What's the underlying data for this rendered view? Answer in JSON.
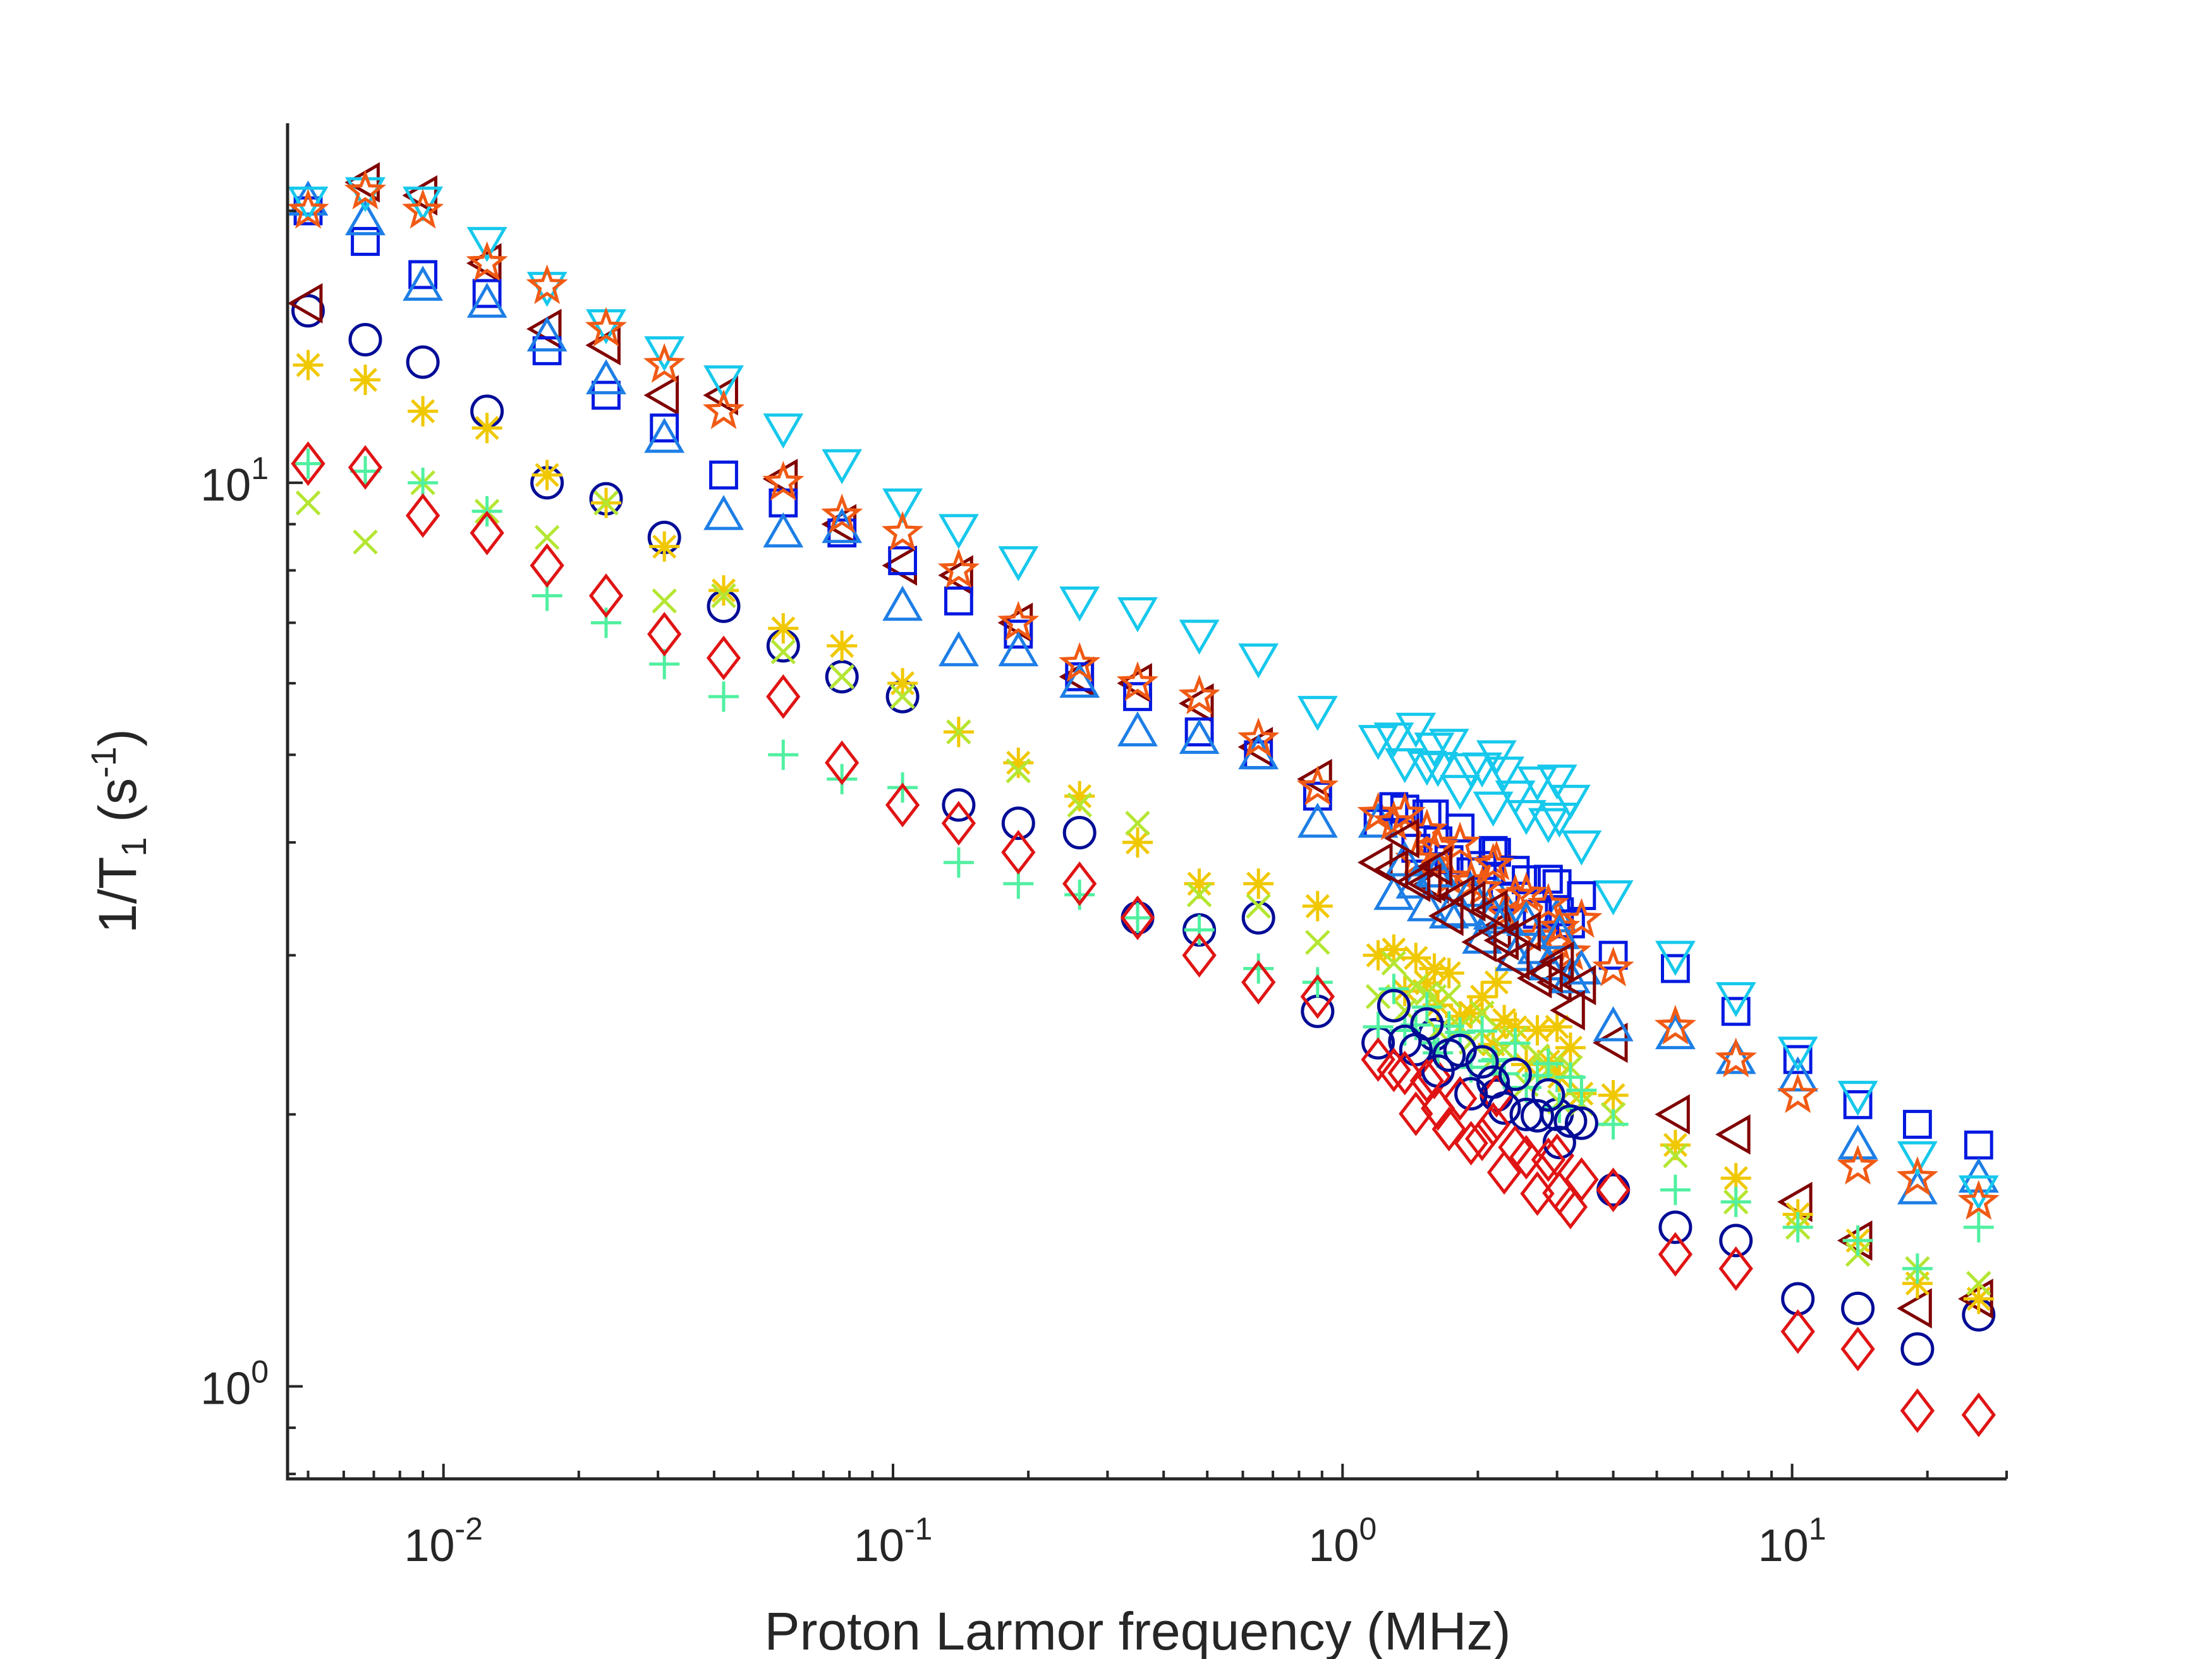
{
  "chart_data": {
    "type": "scatter",
    "title": "",
    "xlabel": "Proton Larmor frequency (MHz)",
    "ylabel": {
      "base": "1/T",
      "sub": "1",
      "mid": " (s",
      "sup": "-1",
      "end": ")"
    },
    "xscale": "log",
    "yscale": "log",
    "xlim": [
      0.0045,
      30
    ],
    "ylim": [
      0.79,
      25
    ],
    "x_ticks": [
      {
        "value": 0.01,
        "base": "10",
        "exp": "-2"
      },
      {
        "value": 0.1,
        "base": "10",
        "exp": "-1"
      },
      {
        "value": 1,
        "base": "10",
        "exp": "0"
      },
      {
        "value": 10,
        "base": "10",
        "exp": "1"
      }
    ],
    "y_ticks": [
      {
        "value": 1,
        "base": "10",
        "exp": "0"
      },
      {
        "value": 10,
        "base": "10",
        "exp": "1"
      }
    ],
    "grid": false,
    "legend": "none",
    "x": [
      0.005,
      0.0067,
      0.009,
      0.0125,
      0.017,
      0.023,
      0.031,
      0.042,
      0.057,
      0.077,
      0.105,
      0.14,
      0.19,
      0.26,
      0.35,
      0.48,
      0.65,
      0.88,
      1.2,
      1.6,
      2.2,
      3.0,
      4.0,
      5.5,
      7.5,
      10.3,
      14,
      19,
      26
    ],
    "series": [
      {
        "name": "blue circles",
        "marker": "circle",
        "color": "#000c96",
        "values": [
          15.5,
          14.4,
          13.6,
          12.0,
          10.0,
          9.6,
          8.7,
          7.3,
          6.6,
          6.1,
          5.8,
          4.4,
          4.2,
          4.1,
          3.3,
          3.2,
          3.3,
          2.6,
          2.4,
          2.45,
          2.1,
          2.0,
          1.65,
          1.5,
          1.45,
          1.25,
          1.22,
          1.1,
          1.2
        ]
      },
      {
        "name": "dark red triangles",
        "marker": "triangle-left",
        "color": "#800000",
        "values": [
          15.8,
          21.5,
          20.8,
          17.5,
          14.8,
          14.2,
          12.5,
          12.5,
          10.1,
          9.0,
          8.1,
          7.9,
          7.0,
          6.1,
          6.0,
          5.7,
          5.1,
          4.7,
          3.8,
          3.6,
          3.2,
          2.8,
          2.4,
          2.0,
          1.9,
          1.6,
          1.45,
          1.22,
          1.25
        ]
      },
      {
        "name": "blue squares",
        "marker": "square",
        "color": "#0018e0",
        "values": [
          20.0,
          18.5,
          17.0,
          16.2,
          14.0,
          12.5,
          11.5,
          10.2,
          9.5,
          8.8,
          8.2,
          7.4,
          6.8,
          6.1,
          5.8,
          5.3,
          5.0,
          4.5,
          4.2,
          4.3,
          3.9,
          3.6,
          3.0,
          2.9,
          2.6,
          2.3,
          2.05,
          1.95,
          1.85
        ]
      },
      {
        "name": "light blue triangles",
        "marker": "triangle-up",
        "color": "#1d7ee6",
        "values": [
          20.5,
          19.5,
          16.5,
          15.8,
          14.5,
          13.0,
          11.2,
          9.2,
          8.8,
          8.9,
          7.3,
          6.5,
          6.5,
          6.0,
          5.3,
          5.2,
          5.0,
          4.2,
          4.2,
          3.7,
          3.5,
          3.3,
          2.5,
          2.45,
          2.3,
          2.2,
          1.85,
          1.65,
          1.7
        ]
      },
      {
        "name": "cyan triangles",
        "marker": "triangle-down",
        "color": "#16c8ec",
        "values": [
          20.5,
          21.0,
          20.5,
          18.5,
          16.5,
          15.0,
          14.0,
          13.0,
          11.5,
          10.5,
          9.5,
          8.9,
          8.2,
          7.4,
          7.2,
          6.8,
          6.4,
          5.6,
          5.2,
          5.1,
          5.0,
          4.7,
          3.5,
          3.0,
          2.7,
          2.35,
          2.1,
          1.8,
          1.65
        ]
      },
      {
        "name": "orange stars",
        "marker": "pentagram",
        "color": "#f05a14",
        "values": [
          20.0,
          21.0,
          20.0,
          17.5,
          16.5,
          14.8,
          13.5,
          12.0,
          10.0,
          9.2,
          8.8,
          8.0,
          7.0,
          6.3,
          6.0,
          5.8,
          5.2,
          4.6,
          4.3,
          3.9,
          3.8,
          3.1,
          2.9,
          2.5,
          2.3,
          2.1,
          1.75,
          1.7,
          1.6
        ]
      },
      {
        "name": "yellow asterisks",
        "marker": "asterisk",
        "color": "#f0c800",
        "values": [
          13.5,
          13.0,
          12.0,
          11.5,
          10.2,
          9.5,
          8.5,
          7.6,
          6.9,
          6.6,
          6.0,
          5.3,
          4.9,
          4.5,
          4.0,
          3.6,
          3.6,
          3.4,
          3.0,
          2.9,
          2.8,
          2.5,
          2.1,
          1.85,
          1.7,
          1.55,
          1.45,
          1.3,
          1.25
        ]
      },
      {
        "name": "yellow-green crosses",
        "marker": "x",
        "color": "#b4e632",
        "values": [
          9.5,
          8.6,
          10.0,
          9.3,
          8.7,
          9.5,
          7.4,
          7.5,
          6.5,
          6.1,
          5.8,
          5.3,
          4.8,
          4.4,
          4.2,
          3.5,
          3.4,
          3.1,
          2.7,
          2.7,
          2.5,
          2.3,
          2.0,
          1.8,
          1.6,
          1.5,
          1.4,
          1.35,
          1.3
        ]
      },
      {
        "name": "green plus",
        "marker": "plus",
        "color": "#50f0a0",
        "values": [
          10.5,
          10.3,
          10.0,
          9.3,
          7.5,
          7.0,
          6.3,
          5.8,
          5.0,
          4.7,
          4.6,
          3.8,
          3.6,
          3.5,
          3.3,
          3.2,
          2.9,
          2.8,
          2.5,
          2.4,
          2.3,
          2.2,
          1.95,
          1.65,
          1.6,
          1.5,
          1.45,
          1.35,
          1.5
        ]
      },
      {
        "name": "red diamonds",
        "marker": "diamond",
        "color": "#e01414",
        "values": [
          10.5,
          10.4,
          9.2,
          8.8,
          8.1,
          7.5,
          6.8,
          6.4,
          5.8,
          4.9,
          4.4,
          4.2,
          3.9,
          3.6,
          3.3,
          3.0,
          2.8,
          2.7,
          2.3,
          2.2,
          2.1,
          1.8,
          1.65,
          1.4,
          1.35,
          1.15,
          1.1,
          0.94,
          0.93
        ]
      }
    ],
    "dense_region": {
      "x_range": [
        1.3,
        3.4
      ],
      "series_levels": [
        {
          "name": "cyan triangles",
          "marker": "triangle-down",
          "color": "#16c8ec",
          "from": 5.2,
          "to": 4.2
        },
        {
          "name": "blue squares",
          "marker": "square",
          "color": "#0018e0",
          "from": 4.3,
          "to": 3.3
        },
        {
          "name": "orange stars",
          "marker": "pentagram",
          "color": "#f05a14",
          "from": 4.2,
          "to": 3.1
        },
        {
          "name": "light blue triangles",
          "marker": "triangle-up",
          "color": "#1d7ee6",
          "from": 3.7,
          "to": 2.9
        },
        {
          "name": "dark red triangles",
          "marker": "triangle-left",
          "color": "#800000",
          "from": 3.9,
          "to": 2.7
        },
        {
          "name": "yellow asterisks",
          "marker": "asterisk",
          "color": "#f0c800",
          "from": 2.95,
          "to": 2.2
        },
        {
          "name": "yellow-green crosses",
          "marker": "x",
          "color": "#b4e632",
          "from": 2.8,
          "to": 2.1
        },
        {
          "name": "green plus",
          "marker": "plus",
          "color": "#50f0a0",
          "from": 2.6,
          "to": 2.1
        },
        {
          "name": "blue circles",
          "marker": "circle",
          "color": "#000c96",
          "from": 2.5,
          "to": 1.9
        },
        {
          "name": "red diamonds",
          "marker": "diamond",
          "color": "#e01414",
          "from": 2.2,
          "to": 1.6
        }
      ]
    }
  }
}
